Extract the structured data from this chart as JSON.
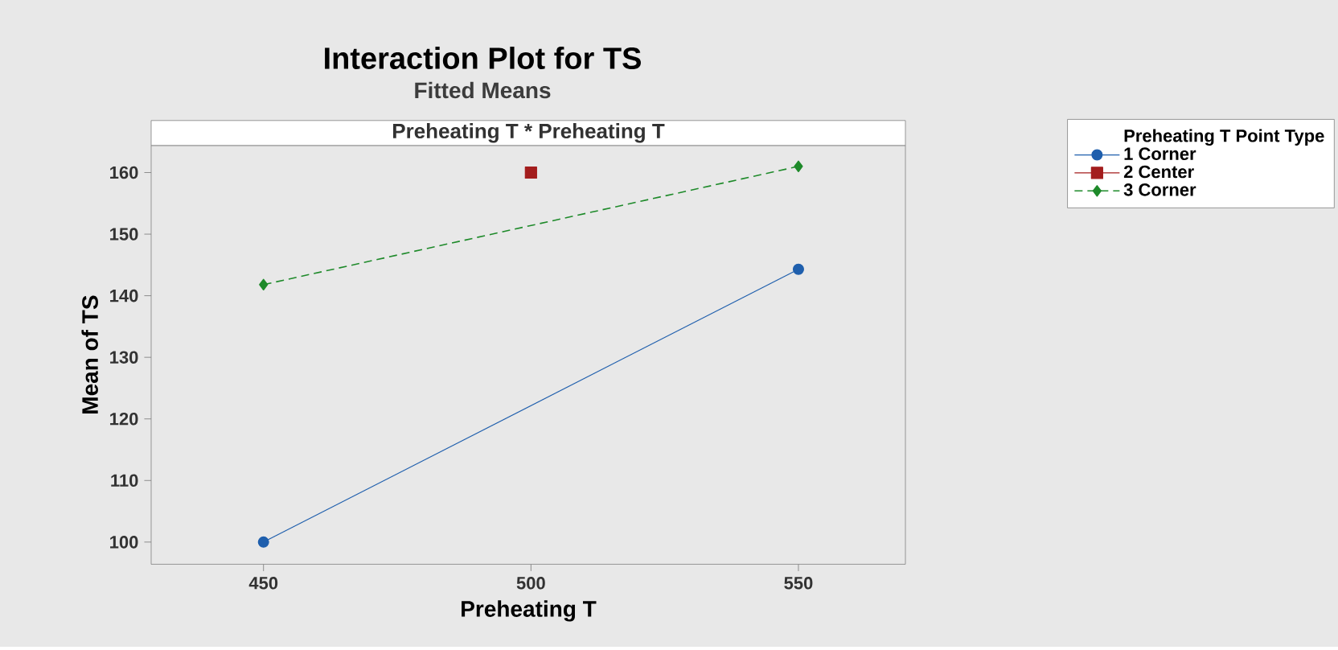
{
  "chart_data": {
    "type": "line",
    "title": "Interaction Plot for TS",
    "subtitle": "Fitted Means",
    "annotations": [
      "Preheating T * Preheating T"
    ],
    "xlabel": "Preheating T",
    "ylabel": "Mean of TS",
    "legend_title": "Preheating T  Point Type",
    "xlim": [
      429,
      570
    ],
    "xticks": [
      450,
      500,
      550
    ],
    "ylim": [
      96.4,
      164.4
    ],
    "yticks": [
      100,
      110,
      120,
      130,
      140,
      150,
      160
    ],
    "grid": false,
    "legend": "right",
    "series": [
      {
        "name": "1  Corner",
        "color": "#1f5fad",
        "marker": "circle",
        "line_style": "solid",
        "x": [
          450,
          550
        ],
        "values": [
          100,
          144.3
        ]
      },
      {
        "name": "2  Center",
        "color": "#a31d1d",
        "marker": "square",
        "line_style": "solid",
        "x": [
          500
        ],
        "values": [
          160
        ]
      },
      {
        "name": "3  Corner",
        "color": "#1e8a2a",
        "marker": "diamond",
        "line_style": "dashed",
        "x": [
          450,
          550
        ],
        "values": [
          141.8,
          161
        ]
      }
    ]
  }
}
